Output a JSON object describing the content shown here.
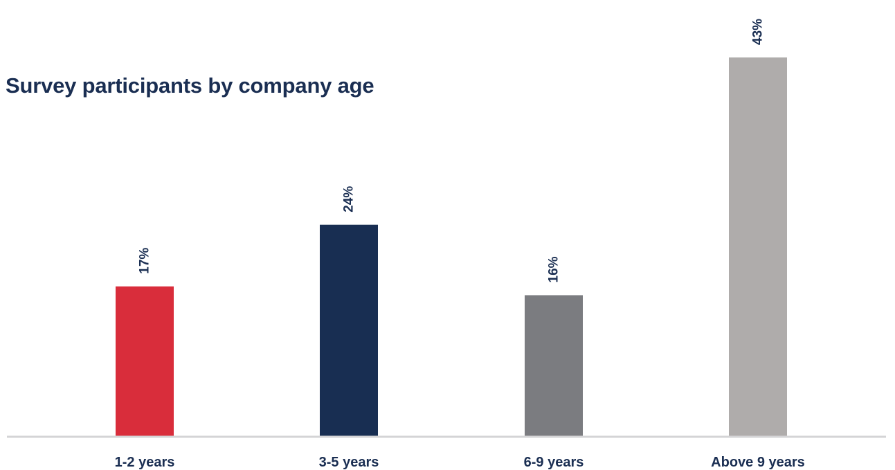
{
  "chart_data": {
    "type": "bar",
    "title": "Survey participants by company age",
    "categories": [
      "1-2 years",
      "3-5 years",
      "6-9 years",
      "Above 9 years"
    ],
    "values": [
      17,
      24,
      16,
      43
    ],
    "value_labels": [
      "17%",
      "24%",
      "16%",
      "43%"
    ],
    "unit": "%",
    "colors": [
      "#d92d3b",
      "#182e52",
      "#7b7c80",
      "#afacab"
    ],
    "label_color": "#1a2e52",
    "axis_color": "#d4d4d6",
    "ylim": [
      0,
      43
    ],
    "grid": false,
    "legend": "none"
  }
}
